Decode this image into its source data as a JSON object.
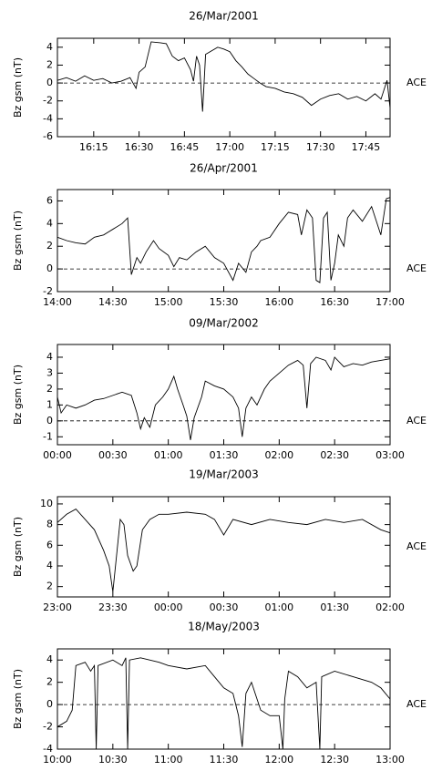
{
  "chart_data": [
    {
      "type": "line",
      "title": "26/Mar/2001",
      "y_label": "Bz gsm (nT)",
      "annotation": "ACE",
      "color": "#000000",
      "hline": 0,
      "xlim": [
        "16:03",
        "17:53"
      ],
      "xticks": [
        "16:15",
        "16:30",
        "16:45",
        "17:00",
        "17:15",
        "17:30",
        "17:45"
      ],
      "ylim": [
        -6,
        5
      ],
      "yticks": [
        -6,
        -4,
        -2,
        0,
        2,
        4
      ],
      "x": [
        "16:03",
        "16:06",
        "16:09",
        "16:12",
        "16:15",
        "16:18",
        "16:21",
        "16:24",
        "16:27",
        "16:29",
        "16:30",
        "16:32",
        "16:34",
        "16:37",
        "16:39",
        "16:41",
        "16:43",
        "16:45",
        "16:47",
        "16:48",
        "16:49",
        "16:50",
        "16:51",
        "16:52",
        "16:54",
        "16:56",
        "16:58",
        "17:00",
        "17:02",
        "17:04",
        "17:06",
        "17:08",
        "17:10",
        "17:12",
        "17:15",
        "17:18",
        "17:21",
        "17:24",
        "17:27",
        "17:30",
        "17:33",
        "17:36",
        "17:39",
        "17:42",
        "17:45",
        "17:48",
        "17:50",
        "17:52",
        "17:53"
      ],
      "values": [
        0.3,
        0.6,
        0.2,
        0.8,
        0.3,
        0.5,
        0,
        0.2,
        0.6,
        -0.6,
        1.2,
        1.8,
        4.6,
        4.5,
        4.4,
        3.0,
        2.5,
        2.8,
        1.5,
        0.2,
        3.0,
        2.0,
        -3.2,
        3.2,
        3.6,
        4.0,
        3.8,
        3.5,
        2.5,
        1.8,
        1.0,
        0.5,
        0,
        -0.4,
        -0.6,
        -1.0,
        -1.2,
        -1.6,
        -2.5,
        -1.8,
        -1.4,
        -1.2,
        -1.8,
        -1.5,
        -2.0,
        -1.2,
        -1.8,
        0.3,
        -2.8
      ]
    },
    {
      "type": "line",
      "title": "26/Apr/2001",
      "y_label": "Bz gsm (nT)",
      "annotation": "ACE",
      "color": "#000000",
      "hline": 0,
      "xlim": [
        "14:00",
        "17:00"
      ],
      "xticks": [
        "14:00",
        "14:30",
        "15:00",
        "15:30",
        "16:00",
        "16:30",
        "17:00"
      ],
      "ylim": [
        -2,
        7
      ],
      "yticks": [
        -2,
        0,
        2,
        4,
        6
      ],
      "x": [
        "14:00",
        "14:05",
        "14:10",
        "14:15",
        "14:20",
        "14:25",
        "14:30",
        "14:35",
        "14:38",
        "14:40",
        "14:43",
        "14:45",
        "14:48",
        "14:52",
        "14:55",
        "15:00",
        "15:03",
        "15:06",
        "15:10",
        "15:15",
        "15:20",
        "15:25",
        "15:30",
        "15:35",
        "15:38",
        "15:42",
        "15:45",
        "15:48",
        "15:50",
        "15:55",
        "16:00",
        "16:05",
        "16:10",
        "16:12",
        "16:15",
        "16:18",
        "16:20",
        "16:22",
        "16:24",
        "16:26",
        "16:28",
        "16:30",
        "16:32",
        "16:35",
        "16:37",
        "16:40",
        "16:45",
        "16:50",
        "16:55",
        "16:58",
        "17:00"
      ],
      "values": [
        2.8,
        2.5,
        2.3,
        2.2,
        2.8,
        3.0,
        3.5,
        4.0,
        4.5,
        -0.5,
        1.0,
        0.5,
        1.5,
        2.5,
        1.8,
        1.2,
        0.2,
        1.0,
        0.8,
        1.5,
        2.0,
        1.0,
        0.5,
        -1.0,
        0.5,
        -0.3,
        1.5,
        2.0,
        2.5,
        2.8,
        4.0,
        5.0,
        4.8,
        3.0,
        5.2,
        4.5,
        -1.0,
        -1.2,
        4.5,
        5.0,
        -1.0,
        0.5,
        3.0,
        2.0,
        4.5,
        5.2,
        4.2,
        5.5,
        3.0,
        6.2,
        6.3
      ]
    },
    {
      "type": "line",
      "title": "09/Mar/2002",
      "y_label": "Bz gsm (nT)",
      "annotation": "ACE",
      "color": "#000000",
      "hline": 0,
      "xlim": [
        "00:00",
        "03:00"
      ],
      "xticks": [
        "00:00",
        "00:30",
        "01:00",
        "01:30",
        "02:00",
        "02:30",
        "03:00"
      ],
      "ylim": [
        -1.5,
        4.8
      ],
      "yticks": [
        -1,
        0,
        1,
        2,
        3,
        4
      ],
      "x": [
        "00:00",
        "00:02",
        "00:05",
        "00:10",
        "00:15",
        "00:20",
        "00:25",
        "00:30",
        "00:35",
        "00:40",
        "00:43",
        "00:45",
        "00:47",
        "00:50",
        "00:53",
        "00:57",
        "01:00",
        "01:03",
        "01:05",
        "01:08",
        "01:10",
        "01:12",
        "01:14",
        "01:18",
        "01:20",
        "01:25",
        "01:30",
        "01:35",
        "01:38",
        "01:40",
        "01:42",
        "01:45",
        "01:48",
        "01:52",
        "01:55",
        "02:00",
        "02:05",
        "02:10",
        "02:13",
        "02:15",
        "02:17",
        "02:20",
        "02:25",
        "02:28",
        "02:30",
        "02:35",
        "02:40",
        "02:45",
        "02:50",
        "02:55",
        "03:00"
      ],
      "values": [
        1.5,
        0.5,
        1.0,
        0.8,
        1.0,
        1.3,
        1.4,
        1.6,
        1.8,
        1.6,
        0.5,
        -0.5,
        0.2,
        -0.4,
        1.0,
        1.5,
        2.0,
        2.8,
        2.0,
        1.0,
        0.3,
        -1.2,
        0.2,
        1.5,
        2.5,
        2.2,
        2.0,
        1.5,
        0.8,
        -1.0,
        0.8,
        1.5,
        1.0,
        2.0,
        2.5,
        3.0,
        3.5,
        3.8,
        3.5,
        0.8,
        3.6,
        4.0,
        3.8,
        3.2,
        4.0,
        3.4,
        3.6,
        3.5,
        3.7,
        3.8,
        3.9
      ]
    },
    {
      "type": "line",
      "title": "19/Mar/2003",
      "y_label": "Bz gsm (nT)",
      "annotation": "ACE",
      "color": "#000000",
      "xlim": [
        "23:00",
        "02:00"
      ],
      "xticks": [
        "23:00",
        "23:30",
        "00:00",
        "00:30",
        "01:00",
        "01:30",
        "02:00"
      ],
      "ylim": [
        1,
        10.7
      ],
      "yticks": [
        2,
        4,
        6,
        8,
        10
      ],
      "x": [
        "23:00",
        "23:05",
        "23:10",
        "23:15",
        "23:20",
        "23:25",
        "23:28",
        "23:30",
        "23:32",
        "23:34",
        "23:36",
        "23:38",
        "23:41",
        "23:43",
        "23:46",
        "23:50",
        "23:55",
        "00:00",
        "00:10",
        "00:20",
        "00:25",
        "00:30",
        "00:35",
        "00:45",
        "00:55",
        "01:05",
        "01:15",
        "01:25",
        "01:35",
        "01:45",
        "01:55",
        "02:00"
      ],
      "values": [
        8.2,
        9.0,
        9.5,
        8.5,
        7.5,
        5.5,
        4.0,
        1.5,
        5.0,
        8.5,
        8.0,
        5.0,
        3.5,
        4.0,
        7.5,
        8.5,
        9.0,
        9.0,
        9.2,
        9.0,
        8.5,
        7.0,
        8.5,
        8.0,
        8.5,
        8.2,
        8.0,
        8.5,
        8.2,
        8.5,
        7.5,
        7.2
      ]
    },
    {
      "type": "line",
      "title": "18/May/2003",
      "y_label": "Bz gsm (nT)",
      "annotation": "ACE",
      "color": "#000000",
      "hline": 0,
      "xlim": [
        "10:00",
        "13:00"
      ],
      "xticks": [
        "10:00",
        "10:30",
        "11:00",
        "11:30",
        "12:00",
        "12:30",
        "13:00"
      ],
      "ylim": [
        -4,
        5
      ],
      "yticks": [
        -4,
        -2,
        0,
        2,
        4
      ],
      "x": [
        "10:00",
        "10:05",
        "10:08",
        "10:10",
        "10:15",
        "10:18",
        "10:20",
        "10:21",
        "10:22",
        "10:30",
        "10:35",
        "10:37",
        "10:38",
        "10:39",
        "10:45",
        "10:55",
        "11:00",
        "11:10",
        "11:20",
        "11:25",
        "11:30",
        "11:35",
        "11:38",
        "11:40",
        "11:42",
        "11:45",
        "11:50",
        "11:55",
        "12:00",
        "12:02",
        "12:03",
        "12:05",
        "12:10",
        "12:15",
        "12:20",
        "12:22",
        "12:23",
        "12:30",
        "12:40",
        "12:50",
        "12:55",
        "13:00"
      ],
      "values": [
        -2.0,
        -1.5,
        -0.5,
        3.5,
        3.8,
        3.0,
        3.5,
        -4.0,
        3.5,
        4.0,
        3.5,
        4.2,
        -4.0,
        4.0,
        4.2,
        3.8,
        3.5,
        3.2,
        3.5,
        2.5,
        1.5,
        1.0,
        -1.0,
        -3.8,
        1.0,
        2.0,
        -0.5,
        -1.0,
        -1.0,
        -4.0,
        0.5,
        3.0,
        2.5,
        1.5,
        2.0,
        -4.0,
        2.5,
        3.0,
        2.5,
        2.0,
        1.5,
        0.5
      ]
    }
  ]
}
